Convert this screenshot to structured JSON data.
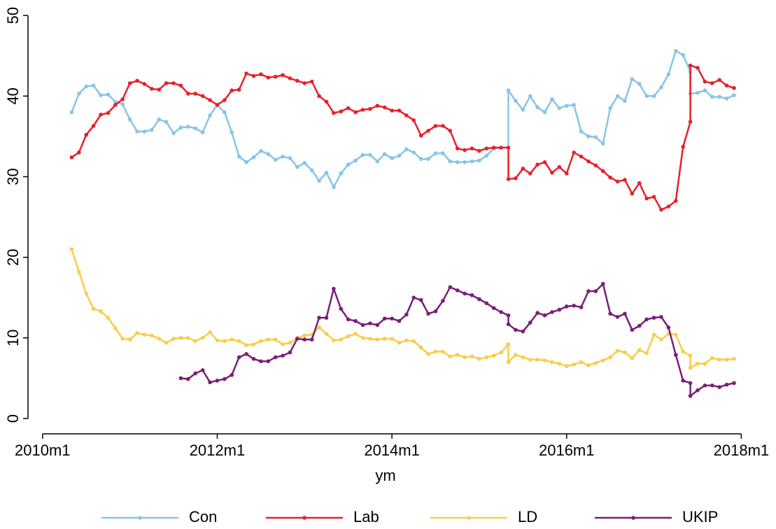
{
  "chart_data": {
    "type": "line",
    "x_label": "ym",
    "x": [
      604,
      605,
      606,
      607,
      608,
      609,
      610,
      611,
      612,
      613,
      614,
      615,
      616,
      617,
      618,
      619,
      620,
      621,
      622,
      623,
      624,
      625,
      626,
      627,
      628,
      629,
      630,
      631,
      632,
      633,
      634,
      635,
      636,
      637,
      638,
      639,
      640,
      641,
      642,
      643,
      644,
      645,
      646,
      647,
      648,
      649,
      650,
      651,
      652,
      653,
      654,
      655,
      656,
      657,
      658,
      659,
      660,
      661,
      662,
      663,
      664,
      664,
      665,
      666,
      667,
      668,
      669,
      670,
      671,
      672,
      673,
      674,
      675,
      676,
      677,
      678,
      679,
      680,
      681,
      682,
      683,
      684,
      685,
      686,
      687,
      688,
      689,
      689,
      690,
      691,
      692,
      693,
      694,
      695
    ],
    "series": [
      {
        "name": "Con",
        "color": "#87c5e8",
        "values": [
          38,
          40.3,
          41.2,
          41.3,
          40.1,
          40.2,
          39.3,
          39.0,
          37.1,
          35.6,
          35.6,
          35.8,
          37.1,
          36.8,
          35.4,
          36.1,
          36.2,
          36.0,
          35.5,
          37.6,
          38.9,
          38.0,
          35.5,
          32.5,
          31.8,
          32.4,
          33.2,
          32.8,
          32.1,
          32.5,
          32.3,
          31.2,
          31.7,
          30.8,
          29.5,
          30.5,
          28.7,
          30.4,
          31.5,
          32.0,
          32.7,
          32.7,
          31.9,
          32.8,
          32.3,
          32.6,
          33.4,
          33.0,
          32.2,
          32.2,
          32.9,
          32.9,
          31.9,
          31.8,
          31.8,
          31.9,
          32.0,
          32.6,
          33.5,
          33.6,
          33.6,
          40.7,
          39.4,
          38.3,
          40.0,
          38.6,
          38.0,
          39.6,
          38.5,
          38.8,
          38.9,
          35.6,
          35.0,
          34.9,
          34.1,
          38.5,
          40.0,
          39.4,
          42.1,
          41.5,
          40.0,
          40.0,
          41.1,
          42.7,
          45.6,
          45.1,
          43,
          40.3,
          40.4,
          40.7,
          39.9,
          39.9,
          39.7,
          40.1
        ]
      },
      {
        "name": "Lab",
        "color": "#e8202a",
        "values": [
          32.4,
          33.0,
          35.2,
          36.3,
          37.7,
          37.9,
          38.9,
          39.6,
          41.6,
          41.9,
          41.5,
          40.9,
          40.8,
          41.6,
          41.6,
          41.3,
          40.3,
          40.3,
          40.0,
          39.5,
          38.9,
          39.5,
          40.7,
          40.8,
          42.8,
          42.5,
          42.7,
          42.3,
          42.4,
          42.6,
          42.2,
          41.9,
          41.6,
          41.8,
          40.0,
          39.3,
          37.9,
          38.1,
          38.5,
          38.0,
          38.3,
          38.4,
          38.8,
          38.6,
          38.2,
          38.2,
          37.6,
          37.0,
          35.1,
          35.7,
          36.3,
          36.3,
          35.7,
          33.5,
          33.3,
          33.5,
          33.2,
          33.5,
          33.6,
          33.6,
          33.6,
          29.7,
          29.8,
          31.0,
          30.4,
          31.5,
          31.8,
          30.5,
          31.2,
          30.4,
          33.0,
          32.5,
          31.9,
          31.4,
          30.7,
          29.9,
          29.4,
          29.6,
          27.9,
          29.2,
          27.3,
          27.5,
          25.9,
          26.3,
          27.0,
          33.7,
          36.8,
          43.8,
          43.5,
          41.8,
          41.6,
          42.0,
          41.3,
          41.0
        ]
      },
      {
        "name": "LD",
        "color": "#f9cd4b",
        "values": [
          21,
          18.2,
          15.5,
          13.6,
          13.3,
          12.5,
          11.2,
          9.9,
          9.8,
          10.6,
          10.4,
          10.3,
          9.9,
          9.4,
          9.9,
          10.0,
          10.0,
          9.6,
          10.0,
          10.7,
          9.7,
          9.6,
          9.8,
          9.6,
          9.1,
          9.2,
          9.6,
          9.8,
          9.8,
          9.2,
          9.4,
          10.0,
          10.3,
          10.4,
          11.3,
          10.5,
          9.7,
          9.8,
          10.2,
          10.5,
          10.0,
          9.9,
          9.8,
          9.9,
          9.9,
          9.4,
          9.7,
          9.6,
          8.8,
          8.0,
          8.3,
          8.3,
          7.7,
          7.9,
          7.6,
          7.7,
          7.4,
          7.6,
          7.8,
          8.2,
          9.2,
          7.0,
          7.9,
          7.6,
          7.3,
          7.3,
          7.2,
          7.0,
          6.8,
          6.5,
          6.7,
          7.0,
          6.6,
          6.9,
          7.2,
          7.6,
          8.4,
          8.2,
          7.5,
          8.5,
          8.1,
          10.4,
          9.8,
          10.5,
          10.4,
          8.3,
          7.8,
          6.3,
          6.8,
          6.8,
          7.5,
          7.3,
          7.3,
          7.4
        ]
      },
      {
        "name": "UKIP",
        "color": "#7a1d79",
        "values": [
          null,
          null,
          null,
          null,
          null,
          null,
          null,
          null,
          null,
          null,
          null,
          null,
          null,
          null,
          null,
          5.0,
          4.9,
          5.6,
          6.0,
          4.5,
          4.7,
          4.9,
          5.4,
          7.6,
          8.0,
          7.4,
          7.1,
          7.1,
          7.6,
          7.8,
          8.2,
          9.9,
          9.8,
          9.8,
          12.5,
          12.5,
          16.1,
          13.6,
          12.3,
          12.1,
          11.6,
          11.8,
          11.6,
          12.4,
          12.4,
          12.1,
          12.9,
          15.0,
          14.7,
          13.0,
          13.3,
          14.6,
          16.3,
          15.9,
          15.5,
          15.3,
          14.8,
          14.3,
          13.7,
          13.2,
          12.8,
          11.7,
          11.0,
          10.8,
          11.9,
          13.1,
          12.8,
          13.2,
          13.5,
          13.9,
          14.0,
          13.8,
          15.8,
          15.8,
          16.7,
          13.0,
          12.6,
          13.0,
          11.0,
          11.5,
          12.3,
          12.5,
          12.6,
          11.3,
          7.9,
          4.7,
          4.4,
          2.8,
          3.5,
          4.1,
          4.1,
          3.9,
          4.2,
          4.4
        ]
      }
    ],
    "xlim": [
      598,
      697.5
    ],
    "xticks": [
      {
        "value": 600,
        "label": "2010m1"
      },
      {
        "value": 624,
        "label": "2012m1"
      },
      {
        "value": 648,
        "label": "2014m1"
      },
      {
        "value": 672,
        "label": "2016m1"
      },
      {
        "value": 696,
        "label": "2018m1"
      }
    ],
    "ylim": [
      -1.9,
      51.05
    ],
    "yticks": [
      0,
      10,
      20,
      30,
      40,
      50
    ],
    "legend": "bottom"
  }
}
